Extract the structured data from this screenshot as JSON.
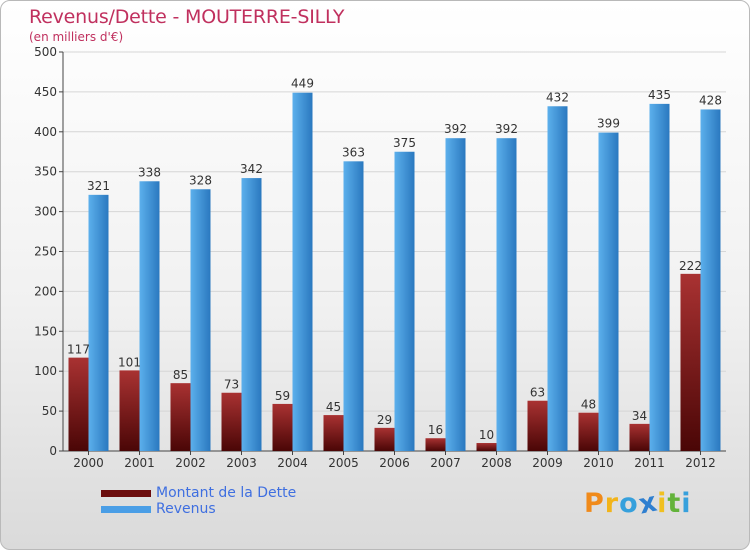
{
  "title": "Revenus/Dette - MOUTERRE-SILLY",
  "subtitle": "(en milliers d'€)",
  "logo": {
    "text": "Proxiti",
    "letters": [
      "P",
      "r",
      "o",
      "x",
      "i",
      "t",
      "i"
    ]
  },
  "colors": {
    "debt_top": "#a93232",
    "debt_bottom": "#4a0606",
    "rev_top": "#5cb0ec",
    "rev_bottom": "#2a78bf",
    "title": "#c0305e",
    "legend_text": "#3f6fe0",
    "logo": [
      "#f08a1a",
      "#f2b41a",
      "#36a0dc",
      "#2f7fd0",
      "#f0c020",
      "#63b33b",
      "#36a0dc"
    ]
  },
  "legend": [
    {
      "label": "Montant de la Dette",
      "swatch": "#6b0c0c"
    },
    {
      "label": "Revenus",
      "swatch": "#4a9ee6"
    }
  ],
  "chart_data": {
    "type": "bar",
    "title": "Revenus/Dette - MOUTERRE-SILLY",
    "ylabel": "(en milliers d'€)",
    "xlabel": "",
    "categories": [
      "2000",
      "2001",
      "2002",
      "2003",
      "2004",
      "2005",
      "2006",
      "2007",
      "2008",
      "2009",
      "2010",
      "2011",
      "2012"
    ],
    "series": [
      {
        "name": "Montant de la Dette",
        "values": [
          117,
          101,
          85,
          73,
          59,
          45,
          29,
          16,
          10,
          63,
          48,
          34,
          222
        ]
      },
      {
        "name": "Revenus",
        "values": [
          321,
          338,
          328,
          342,
          449,
          363,
          375,
          392,
          392,
          432,
          399,
          435,
          428
        ]
      }
    ],
    "ylim": [
      0,
      500
    ],
    "yticks": [
      0,
      50,
      100,
      150,
      200,
      250,
      300,
      350,
      400,
      450,
      500
    ],
    "grid": true,
    "legend_position": "bottom-left"
  }
}
